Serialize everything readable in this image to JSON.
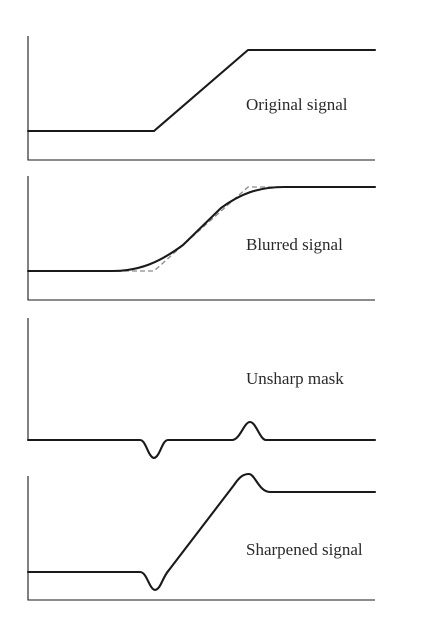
{
  "figure": {
    "panels": [
      {
        "id": "original",
        "label": "Original signal"
      },
      {
        "id": "blurred",
        "label": "Blurred signal"
      },
      {
        "id": "unsharp",
        "label": "Unsharp mask"
      },
      {
        "id": "sharpened",
        "label": "Sharpened signal"
      }
    ]
  },
  "colors": {
    "signal": "#1a1a1a",
    "reference_dashed": "#8a8a8a",
    "axis": "#1a1a1a",
    "label": "#2a2a2a"
  }
}
